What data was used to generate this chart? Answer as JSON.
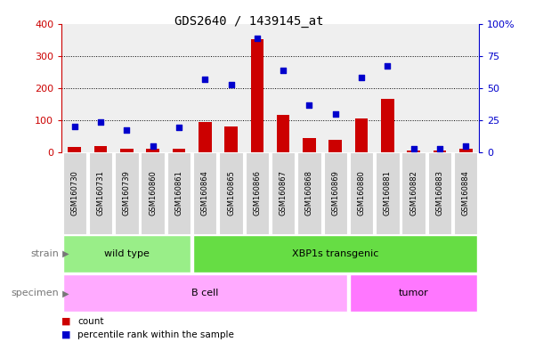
{
  "title": "GDS2640 / 1439145_at",
  "samples": [
    "GSM160730",
    "GSM160731",
    "GSM160739",
    "GSM160860",
    "GSM160861",
    "GSM160864",
    "GSM160865",
    "GSM160866",
    "GSM160867",
    "GSM160868",
    "GSM160869",
    "GSM160880",
    "GSM160881",
    "GSM160882",
    "GSM160883",
    "GSM160884"
  ],
  "counts": [
    15,
    20,
    12,
    12,
    12,
    95,
    80,
    352,
    115,
    45,
    38,
    105,
    165,
    5,
    5,
    12
  ],
  "percentiles": [
    80,
    93,
    68,
    20,
    78,
    228,
    210,
    355,
    255,
    148,
    118,
    232,
    270,
    12,
    12,
    20
  ],
  "strain_groups": [
    {
      "label": "wild type",
      "start": 0,
      "end": 4,
      "color": "#99EE88"
    },
    {
      "label": "XBP1s transgenic",
      "start": 5,
      "end": 15,
      "color": "#66DD44"
    }
  ],
  "specimen_groups": [
    {
      "label": "B cell",
      "start": 0,
      "end": 10,
      "color": "#FFAAFF"
    },
    {
      "label": "tumor",
      "start": 11,
      "end": 15,
      "color": "#FF77FF"
    }
  ],
  "bar_color": "#CC0000",
  "dot_color": "#0000CC",
  "left_axis_color": "#CC0000",
  "right_axis_color": "#0000CC",
  "ylim_left": [
    0,
    400
  ],
  "ylim_right": [
    0,
    100
  ],
  "yticks_left": [
    0,
    100,
    200,
    300,
    400
  ],
  "yticks_right": [
    0,
    25,
    50,
    75,
    100
  ],
  "ytick_labels_right": [
    "0",
    "25",
    "50",
    "75",
    "100%"
  ],
  "background_color": "#FFFFFF",
  "plot_bg_color": "#EFEFEF",
  "sample_cell_color": "#D8D8D8",
  "legend_items": [
    {
      "label": "count",
      "color": "#CC0000"
    },
    {
      "label": "percentile rank within the sample",
      "color": "#0000CC"
    }
  ]
}
